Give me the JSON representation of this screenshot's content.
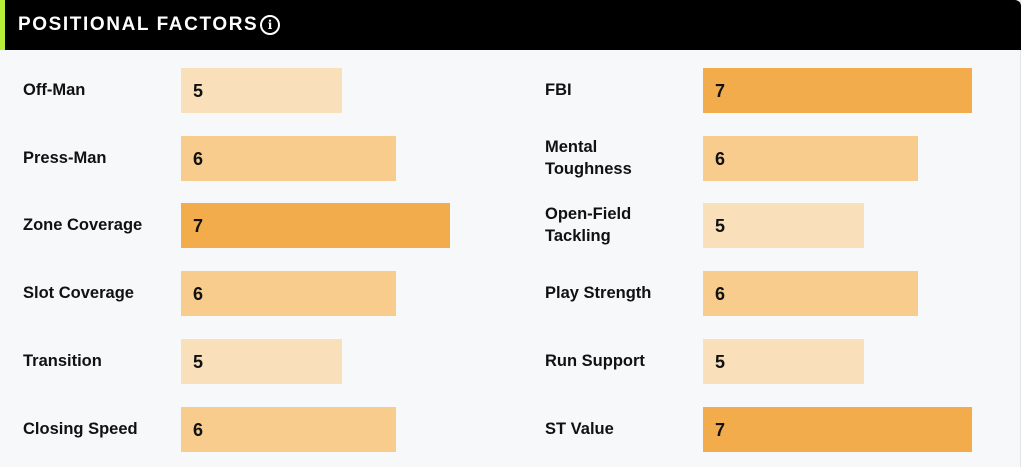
{
  "header": {
    "title": "POSITIONAL FACTORS",
    "info_icon": "info-circle-icon"
  },
  "colors": {
    "header_bg": "#000000",
    "accent": "#b7ef3a",
    "score_5": "#fae0ba",
    "score_6": "#f7cc8d",
    "score_7": "#f2ac4c"
  },
  "left_factors": [
    {
      "label": "Off-Man",
      "value": "5"
    },
    {
      "label": "Press-Man",
      "value": "6"
    },
    {
      "label": "Zone Coverage",
      "value": "7"
    },
    {
      "label": "Slot Coverage",
      "value": "6"
    },
    {
      "label": "Transition",
      "value": "5"
    },
    {
      "label": "Closing Speed",
      "value": "6"
    }
  ],
  "right_factors": [
    {
      "label": "FBI",
      "value": "7"
    },
    {
      "label": "Mental Toughness",
      "value": "6"
    },
    {
      "label": "Open-Field Tackling",
      "value": "5"
    },
    {
      "label": "Play Strength",
      "value": "6"
    },
    {
      "label": "Run Support",
      "value": "5"
    },
    {
      "label": "ST Value",
      "value": "7"
    }
  ]
}
